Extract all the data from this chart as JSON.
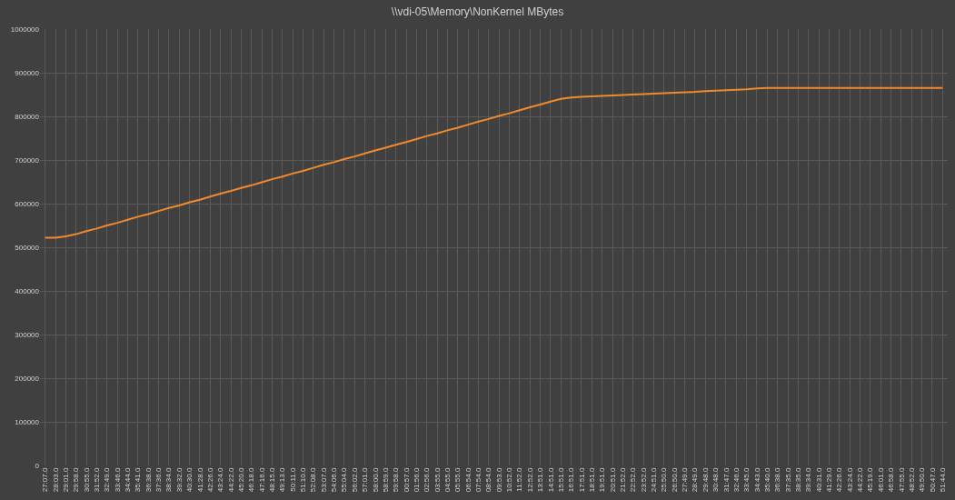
{
  "chart_data": {
    "type": "line",
    "title": "\\\\vdi-05\\Memory\\NonKernel MBytes",
    "categories": [
      "27:07.0",
      "28:03.0",
      "29:01.0",
      "29:58.0",
      "30:55.0",
      "31:52.0",
      "32:49.0",
      "33:46.0",
      "34:44.0",
      "35:41.0",
      "36:38.0",
      "37:36.0",
      "38:34.0",
      "39:32.0",
      "40:30.0",
      "41:28.0",
      "42:26.0",
      "43:24.0",
      "44:22.0",
      "45:20.0",
      "46:18.0",
      "47:16.0",
      "48:15.0",
      "49:13.0",
      "50:11.0",
      "51:10.0",
      "52:08.0",
      "53:07.0",
      "54:06.0",
      "55:04.0",
      "56:02.0",
      "57:01.0",
      "58:00.0",
      "58:59.0",
      "59:58.0",
      "00:57.0",
      "01:56.0",
      "02:56.0",
      "03:55.0",
      "04:55.0",
      "05:55.0",
      "06:54.0",
      "07:54.0",
      "08:54.0",
      "09:53.0",
      "10:52.0",
      "11:52.0",
      "12:52.0",
      "13:51.0",
      "14:51.0",
      "15:51.0",
      "16:51.0",
      "17:51.0",
      "18:51.0",
      "19:51.0",
      "20:51.0",
      "21:52.0",
      "22:52.0",
      "23:52.0",
      "24:51.0",
      "25:50.0",
      "26:50.0",
      "27:49.0",
      "28:49.0",
      "29:48.0",
      "30:48.0",
      "31:47.0",
      "32:46.0",
      "33:45.0",
      "34:43.0",
      "35:40.0",
      "36:38.0",
      "37:35.0",
      "38:35.0",
      "39:34.0",
      "40:31.0",
      "41:29.0",
      "42:26.0",
      "43:24.0",
      "44:22.0",
      "45:19.0",
      "46:01.0",
      "46:58.0",
      "47:55.0",
      "48:52.0",
      "49:50.0",
      "50:47.0",
      "51:44.0"
    ],
    "series": [
      {
        "color": "#f08a2c",
        "values": [
          522000,
          522000,
          525000,
          530000,
          537000,
          543000,
          550000,
          556000,
          563000,
          570000,
          576000,
          583000,
          590000,
          596000,
          603000,
          609000,
          616000,
          623000,
          629000,
          636000,
          642000,
          649000,
          656000,
          662000,
          669000,
          675000,
          682000,
          689000,
          695000,
          702000,
          708000,
          715000,
          722000,
          728000,
          735000,
          741000,
          748000,
          755000,
          761000,
          768000,
          774000,
          781000,
          788000,
          794000,
          801000,
          807000,
          814000,
          821000,
          827000,
          834000,
          840000,
          843000,
          845000,
          846000,
          847000,
          848000,
          849000,
          850000,
          851000,
          852000,
          853000,
          854000,
          855000,
          856000,
          858000,
          859000,
          860000,
          861000,
          862000,
          864000,
          865000,
          865000,
          865000,
          865000,
          865000,
          865000,
          865000,
          865000,
          865000,
          865000,
          865000,
          865000,
          865000,
          865000,
          865000,
          865000,
          865000,
          865000
        ]
      }
    ],
    "ylim": [
      0,
      1000000
    ],
    "yticks": [
      0,
      100000,
      200000,
      300000,
      400000,
      500000,
      600000,
      700000,
      800000,
      900000,
      1000000
    ],
    "grid": true,
    "marker": "none",
    "line_style": "solid"
  }
}
